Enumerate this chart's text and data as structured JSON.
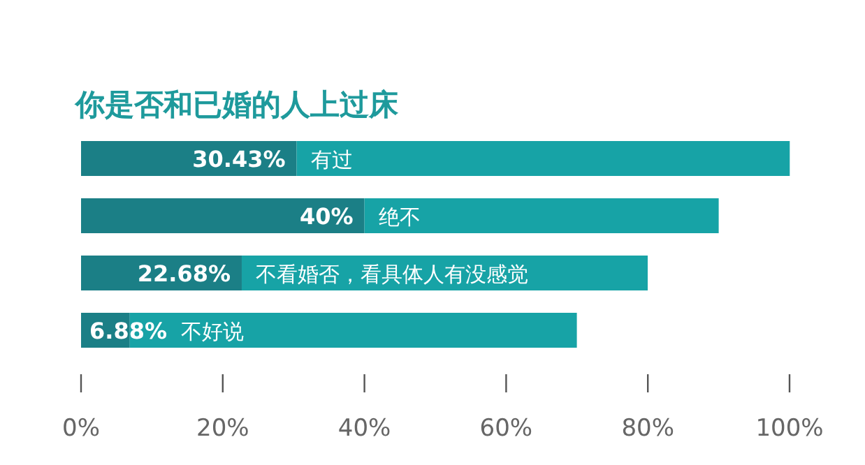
{
  "chart_data": {
    "type": "bar",
    "orientation": "horizontal",
    "stacked": true,
    "title": "你是否和已婚的人上过床",
    "categories": [
      "有过",
      "绝不",
      "不看婚否，看具体人有没感觉",
      "不好说"
    ],
    "series": [
      {
        "color": "#1b7f86",
        "values": [
          30.43,
          40,
          22.68,
          6.88
        ],
        "value_labels": [
          "30.43%",
          "40%",
          "22.68%",
          "6.88%"
        ]
      },
      {
        "color": "#17a3a6",
        "values": [
          69.6,
          50,
          57.3,
          63.1
        ]
      }
    ],
    "xlim": [
      0,
      100
    ],
    "xticks": [
      {
        "value": 0,
        "label": "0%"
      },
      {
        "value": 20,
        "label": "20%"
      },
      {
        "value": 40,
        "label": "40%"
      },
      {
        "value": 60,
        "label": "60%"
      },
      {
        "value": 80,
        "label": "80%"
      },
      {
        "value": 100,
        "label": "100%"
      }
    ],
    "grid": false
  }
}
